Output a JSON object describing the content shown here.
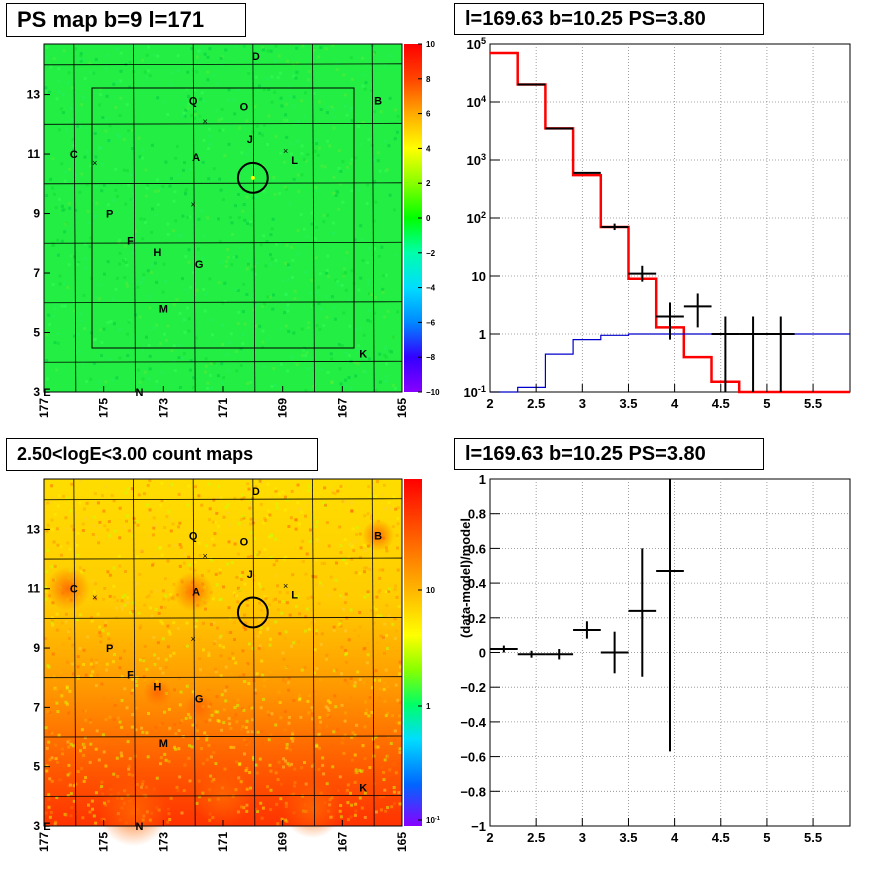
{
  "chart_data": [
    {
      "type": "heatmap",
      "title": "PS map b=9 l=171",
      "x_ticks": [
        "177",
        "175",
        "173",
        "171",
        "169",
        "167",
        "165"
      ],
      "y_ticks": [
        "3",
        "5",
        "7",
        "9",
        "11",
        "13"
      ],
      "xlim": [
        177,
        165
      ],
      "ylim": [
        3,
        14.7
      ],
      "colorbar": {
        "ticks": [
          "10",
          "8",
          "6",
          "4",
          "2",
          "0",
          "−2",
          "−4",
          "−6",
          "−8",
          "−10"
        ],
        "range": [
          -10,
          10
        ]
      },
      "sources": [
        {
          "label": "D",
          "l": 169.9,
          "b": 14.3
        },
        {
          "label": "B",
          "l": 165.8,
          "b": 12.8
        },
        {
          "label": "Q",
          "l": 172.0,
          "b": 12.8
        },
        {
          "label": "O",
          "l": 170.3,
          "b": 12.6
        },
        {
          "label": "J",
          "l": 170.1,
          "b": 11.5
        },
        {
          "label": "L",
          "l": 168.6,
          "b": 10.8
        },
        {
          "label": "C",
          "l": 176.0,
          "b": 11.0
        },
        {
          "label": "A",
          "l": 171.9,
          "b": 10.9
        },
        {
          "label": "P",
          "l": 174.8,
          "b": 9.0
        },
        {
          "label": "F",
          "l": 174.1,
          "b": 8.1
        },
        {
          "label": "H",
          "l": 173.2,
          "b": 7.7
        },
        {
          "label": "G",
          "l": 171.8,
          "b": 7.3
        },
        {
          "label": "M",
          "l": 173.0,
          "b": 5.8
        },
        {
          "label": "K",
          "l": 166.3,
          "b": 4.3
        },
        {
          "label": "N",
          "l": 173.8,
          "b": 3.0
        },
        {
          "label": "E",
          "l": 176.9,
          "b": 3.0
        }
      ],
      "crosses": [
        {
          "l": 171.6,
          "b": 12.1
        },
        {
          "l": 175.3,
          "b": 10.7
        },
        {
          "l": 172.0,
          "b": 9.3
        },
        {
          "l": 168.9,
          "b": 11.1
        }
      ],
      "circle": {
        "l": 170.0,
        "b": 10.2,
        "r": 0.5
      }
    },
    {
      "type": "line",
      "title": "l=169.63 b=10.25 PS=3.80",
      "x_ticks": [
        "2",
        "2.5",
        "3",
        "3.5",
        "4",
        "4.5",
        "5",
        "5.5"
      ],
      "y_ticks": [
        "10^5",
        "10^4",
        "10^3",
        "10^2",
        "10",
        "1",
        "10^-1"
      ],
      "xlim": [
        2,
        5.9
      ],
      "ylim": [
        0.1,
        100000
      ],
      "yscale": "log",
      "series": [
        {
          "kind": "step",
          "color": "#ff0000",
          "edges": [
            2.0,
            2.3,
            2.6,
            2.9,
            3.2,
            3.5,
            3.8,
            4.1,
            4.4,
            4.7,
            5.9
          ],
          "values": [
            70000,
            20000,
            3500,
            550,
            70,
            9,
            1.3,
            0.4,
            0.15,
            0.1
          ]
        },
        {
          "kind": "step",
          "color": "#0000cc",
          "edges": [
            2.0,
            2.3,
            2.6,
            2.9,
            3.2,
            3.5,
            3.8,
            4.1,
            4.4,
            4.7,
            5.9
          ],
          "values": [
            0.1,
            0.12,
            0.45,
            0.8,
            0.95,
            1.0,
            1.0,
            1.0,
            1.0,
            1.0
          ]
        },
        {
          "kind": "points",
          "color": "#000000",
          "points": [
            {
              "x": 2.45,
              "y": 20000,
              "xerr": 0.15,
              "ylo": 20000,
              "yhi": 20000
            },
            {
              "x": 2.75,
              "y": 3500,
              "xerr": 0.15,
              "ylo": 3500,
              "yhi": 3500
            },
            {
              "x": 3.05,
              "y": 600,
              "xerr": 0.15,
              "ylo": 580,
              "yhi": 620
            },
            {
              "x": 3.35,
              "y": 70,
              "xerr": 0.15,
              "ylo": 62,
              "yhi": 80
            },
            {
              "x": 3.65,
              "y": 11,
              "xerr": 0.15,
              "ylo": 8,
              "yhi": 15
            },
            {
              "x": 3.95,
              "y": 2,
              "xerr": 0.15,
              "ylo": 0.8,
              "yhi": 3.5
            },
            {
              "x": 4.25,
              "y": 3,
              "xerr": 0.15,
              "ylo": 1.3,
              "yhi": 5
            },
            {
              "x": 4.55,
              "y": 1,
              "xerr": 0.15,
              "ylo": 0.1,
              "yhi": 2
            },
            {
              "x": 4.85,
              "y": 1,
              "xerr": 0.15,
              "ylo": 0.1,
              "yhi": 2
            },
            {
              "x": 5.15,
              "y": 1,
              "xerr": 0.15,
              "ylo": 0.1,
              "yhi": 2
            }
          ]
        }
      ]
    },
    {
      "type": "heatmap",
      "title": "2.50<logE<3.00 count maps",
      "x_ticks": [
        "177",
        "175",
        "173",
        "171",
        "169",
        "167",
        "165"
      ],
      "y_ticks": [
        "3",
        "5",
        "7",
        "9",
        "11",
        "13"
      ],
      "xlim": [
        177,
        165
      ],
      "ylim": [
        3,
        14.7
      ],
      "colorbar": {
        "ticks": [
          "10",
          "1",
          "10^-1"
        ],
        "scale": "log"
      }
    },
    {
      "type": "scatter",
      "title": "l=169.63 b=10.25 PS=3.80",
      "ylabel": "(data-model)/model",
      "x_ticks": [
        "2",
        "2.5",
        "3",
        "3.5",
        "4",
        "4.5",
        "5",
        "5.5"
      ],
      "y_ticks": [
        "1",
        "0.8",
        "0.6",
        "0.4",
        "0.2",
        "0",
        "−0.2",
        "−0.4",
        "−0.6",
        "−0.8",
        "−1"
      ],
      "xlim": [
        2,
        5.9
      ],
      "ylim": [
        -1,
        1
      ],
      "points": [
        {
          "x": 2.15,
          "y": 0.02,
          "xerr": 0.15,
          "ylo": 0.0,
          "yhi": 0.04
        },
        {
          "x": 2.45,
          "y": -0.01,
          "xerr": 0.15,
          "ylo": -0.03,
          "yhi": 0.01
        },
        {
          "x": 2.75,
          "y": -0.01,
          "xerr": 0.15,
          "ylo": -0.04,
          "yhi": 0.02
        },
        {
          "x": 3.05,
          "y": 0.13,
          "xerr": 0.15,
          "ylo": 0.08,
          "yhi": 0.18
        },
        {
          "x": 3.35,
          "y": 0.0,
          "xerr": 0.15,
          "ylo": -0.12,
          "yhi": 0.12
        },
        {
          "x": 3.65,
          "y": 0.24,
          "xerr": 0.15,
          "ylo": -0.14,
          "yhi": 0.6
        },
        {
          "x": 3.95,
          "y": 0.47,
          "xerr": 0.15,
          "ylo": -0.57,
          "yhi": 1.0
        }
      ]
    }
  ]
}
